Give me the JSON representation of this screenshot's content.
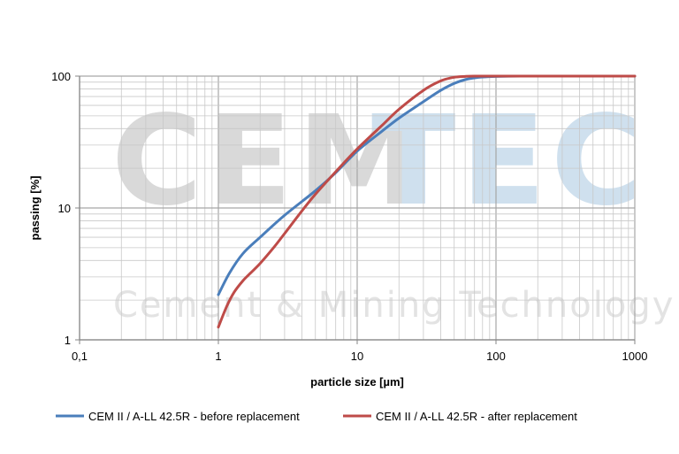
{
  "watermark": {
    "text_a": "CEM",
    "text_b": "TEC",
    "subtitle": "Cement & Mining Technology",
    "color_a": "#d9d9d9",
    "color_b": "#cfe0ee",
    "color_sub": "#e3e3e3"
  },
  "chart_data": {
    "type": "line",
    "title": "",
    "xlabel": "particle size [µm]",
    "ylabel": "passing [%]",
    "x_scale": "log",
    "y_scale": "log",
    "xlim": [
      0.1,
      1000
    ],
    "ylim": [
      1,
      100
    ],
    "x_ticks": [
      "0,1",
      "1",
      "10",
      "100",
      "1000"
    ],
    "y_ticks": [
      "1",
      "10",
      "100"
    ],
    "grid": true,
    "legend_position": "bottom",
    "series": [
      {
        "name": "CEM II / A-LL 42.5R - before replacement",
        "color": "#4a7ebb",
        "x": [
          1,
          1.2,
          1.5,
          2,
          3,
          5,
          7,
          10,
          15,
          20,
          30,
          40,
          50,
          60,
          70,
          80,
          100,
          150,
          200,
          300,
          500,
          1000
        ],
        "y": [
          2.2,
          3.2,
          4.5,
          6.0,
          8.8,
          13.5,
          18.5,
          27,
          38,
          48,
          64,
          78,
          88,
          94,
          97,
          98.5,
          99.5,
          100,
          100,
          100,
          100,
          100
        ]
      },
      {
        "name": "CEM II / A-LL 42.5R - after replacement",
        "color": "#be4b48",
        "x": [
          1,
          1.15,
          1.3,
          1.5,
          1.7,
          2,
          2.5,
          3,
          4,
          5,
          7,
          10,
          15,
          20,
          30,
          40,
          50,
          60,
          70,
          100,
          200,
          500,
          1000
        ],
        "y": [
          1.25,
          1.8,
          2.3,
          2.8,
          3.2,
          3.8,
          5.0,
          6.4,
          9.5,
          12.7,
          18.8,
          28,
          42,
          56,
          78,
          92,
          98,
          99.5,
          100,
          100,
          100,
          100,
          100
        ]
      }
    ]
  }
}
